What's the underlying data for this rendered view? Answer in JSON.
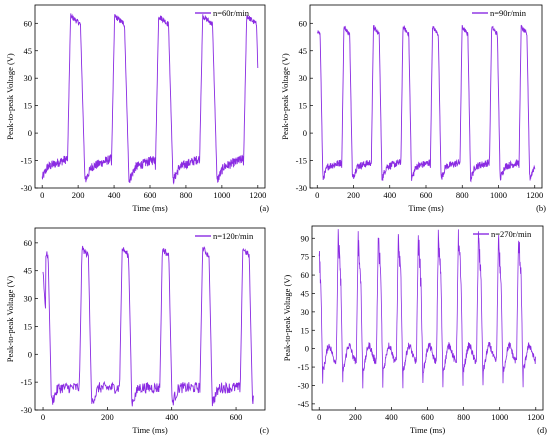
{
  "figure": {
    "series_color": "#8a2be2"
  },
  "chart_data": [
    {
      "id": "a",
      "type": "line",
      "tag": "(a)",
      "legend": "n=60r/min",
      "xlabel": "Time (ms)",
      "ylabel": "Peak-to-peak Voltage (V)",
      "xlim": [
        -40,
        1240
      ],
      "ylim": [
        -30,
        70
      ],
      "xticks": [
        0,
        200,
        400,
        600,
        800,
        1000,
        1200
      ],
      "yticks": [
        -30,
        -15,
        0,
        15,
        30,
        45,
        60
      ],
      "period_ms": 245,
      "first_peak_ms": 140,
      "x_start_ms": 0,
      "x_end_ms": 1200,
      "peak_v": 64,
      "base_v": -20,
      "trough_v": -26,
      "baseline_rise_v": 6,
      "rise_ms": 18,
      "high_ms": 55,
      "fall_ms": 25,
      "noise_v": 2.5
    },
    {
      "id": "b",
      "type": "line",
      "tag": "(b)",
      "legend": "n=90r/min",
      "xlabel": "Time (ms)",
      "ylabel": "Peak-to-peak Voltage (V)",
      "xlim": [
        -40,
        1240
      ],
      "ylim": [
        -30,
        70
      ],
      "xticks": [
        0,
        200,
        400,
        600,
        800,
        1000,
        1200
      ],
      "yticks": [
        -30,
        -15,
        0,
        15,
        30,
        45,
        60
      ],
      "period_ms": 163,
      "first_peak_ms": 135,
      "x_start_ms": 0,
      "x_end_ms": 1200,
      "peak_v": 58,
      "base_v": -19,
      "trough_v": -25,
      "baseline_rise_v": 3,
      "rise_ms": 12,
      "high_ms": 32,
      "fall_ms": 15,
      "noise_v": 2.0
    },
    {
      "id": "c",
      "type": "line",
      "tag": "(c)",
      "legend": "n=120r/min",
      "xlabel": "Time (ms)",
      "ylabel": "Peak-to-peak Voltage (V)",
      "xlim": [
        -25,
        690
      ],
      "ylim": [
        -30,
        68
      ],
      "xticks": [
        0,
        200,
        400,
        600
      ],
      "yticks": [
        -30,
        -15,
        0,
        15,
        30,
        45,
        60
      ],
      "period_ms": 125,
      "first_peak_ms": 113,
      "x_start_ms": 0,
      "x_end_ms": 655,
      "peak_v": 57,
      "base_v": -18,
      "trough_v": -26,
      "baseline_rise_v": 0,
      "rise_ms": 8,
      "high_ms": 20,
      "fall_ms": 10,
      "noise_v": 3.0,
      "start_v": 45
    },
    {
      "id": "d",
      "type": "line",
      "tag": "(d)",
      "legend": "n=270r/min",
      "xlabel": "Time (ms)",
      "ylabel": "Peak-to-peak Voltage (V)",
      "xlim": [
        -40,
        1240
      ],
      "ylim": [
        -50,
        100
      ],
      "xticks": [
        0,
        200,
        400,
        600,
        800,
        1000,
        1200
      ],
      "yticks": [
        -45,
        -30,
        -15,
        0,
        15,
        30,
        45,
        60,
        75,
        90
      ],
      "period_ms": 111,
      "first_peak_ms": 95,
      "x_start_ms": 0,
      "x_end_ms": 1200,
      "peak_v": 90,
      "base_v": -5,
      "trough_v": -42,
      "baseline_rise_v": 0,
      "rise_ms": 10,
      "high_ms": 15,
      "fall_ms": 12,
      "noise_v": 6.0,
      "oscillating": true
    }
  ]
}
